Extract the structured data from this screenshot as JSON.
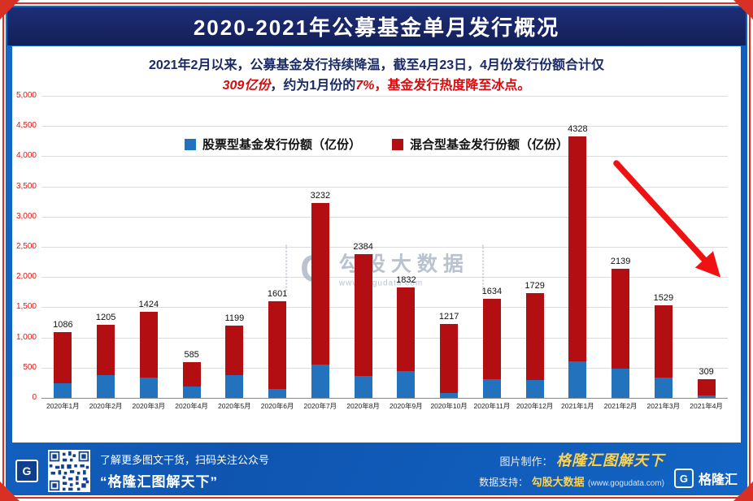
{
  "colors": {
    "panel_blue": "#1161c0",
    "header_navy": "#1b2b72",
    "accent_red": "#e8140f",
    "bar_blue": "#2272bd",
    "bar_red": "#b30e12",
    "gold": "#ffd24d"
  },
  "header": {
    "title": "2020-2021年公募基金单月发行概况"
  },
  "annotation": {
    "line1": "2021年2月以来，公募基金发行持续降温，截至4月23日，4月份发行份额合计仅",
    "line2_highlight1": "309亿份",
    "line2_mid1": "，约为1月份的",
    "line2_highlight2": "7%",
    "line2_tail": "，基金发行热度降至冰点。"
  },
  "watermark": {
    "logo": "G",
    "name": "勾股大数据",
    "url": "www.gogudata.com"
  },
  "footer": {
    "qr_line1": "了解更多图文干货，扫码关注公众号",
    "qr_line2": "“格隆汇图解天下”",
    "credit_label": "图片制作：",
    "credit_value": "格隆汇图解天下",
    "data_label": "数据支持：",
    "data_value": "勾股大数据",
    "data_url": "(www.gogudata.com)",
    "brand_glyph": "G",
    "brand_name": "格隆汇",
    "mini_logo_glyph": "G"
  },
  "chart_data": {
    "type": "bar",
    "stacked": true,
    "title": "2020-2021年公募基金单月发行概况",
    "categories": [
      "2020年1月",
      "2020年2月",
      "2020年3月",
      "2020年4月",
      "2020年5月",
      "2020年6月",
      "2020年7月",
      "2020年8月",
      "2020年9月",
      "2020年10月",
      "2020年11月",
      "2020年12月",
      "2021年1月",
      "2021年2月",
      "2021年3月",
      "2021年4月"
    ],
    "totals": [
      1086,
      1205,
      1424,
      585,
      1199,
      1601,
      3232,
      2384,
      1832,
      1217,
      1634,
      1729,
      4328,
      2139,
      1529,
      309
    ],
    "series": [
      {
        "name": "股票型基金发行份额（亿份）",
        "color": "#2272bd",
        "values": [
          240,
          370,
          330,
          190,
          380,
          150,
          550,
          360,
          440,
          80,
          310,
          290,
          600,
          490,
          340,
          40
        ]
      },
      {
        "name": "混合型基金发行份额（亿份）",
        "color": "#b30e12",
        "values": [
          846,
          835,
          1094,
          395,
          819,
          1451,
          2682,
          2024,
          1392,
          1137,
          1324,
          1439,
          3728,
          1649,
          1189,
          269
        ]
      }
    ],
    "ylim": [
      0,
      5000
    ],
    "ytick_step": 500,
    "grid": true,
    "legend_position": "top-center",
    "xlabel": "",
    "ylabel": ""
  }
}
